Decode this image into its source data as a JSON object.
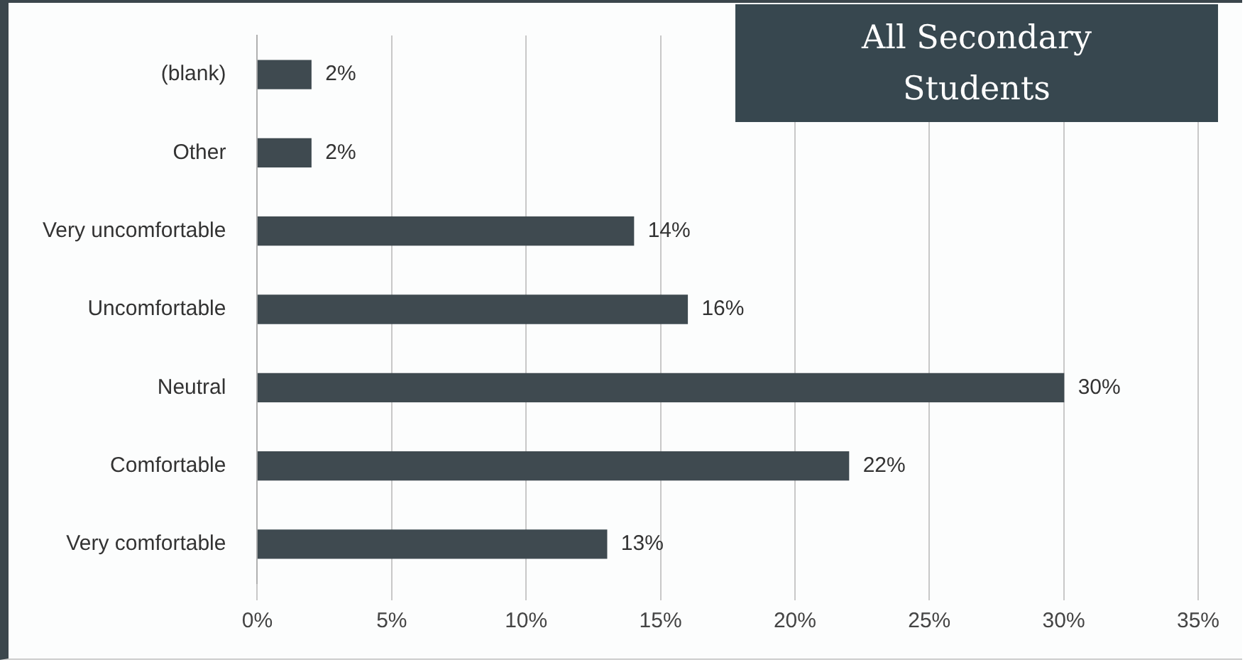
{
  "chart_data": {
    "type": "bar",
    "orientation": "horizontal",
    "title": "All Secondary Students",
    "categories": [
      "(blank)",
      "Other",
      "Very uncomfortable",
      "Uncomfortable",
      "Neutral",
      "Comfortable",
      "Very comfortable"
    ],
    "values": [
      2,
      2,
      14,
      16,
      30,
      22,
      13
    ],
    "value_labels": [
      "2%",
      "2%",
      "14%",
      "16%",
      "30%",
      "22%",
      "13%"
    ],
    "color": "#3f4a50",
    "xlim": [
      0,
      35
    ],
    "xticks": [
      {
        "value": 0,
        "label": "0%"
      },
      {
        "value": 5,
        "label": "5%"
      },
      {
        "value": 10,
        "label": "10%"
      },
      {
        "value": 15,
        "label": "15%"
      },
      {
        "value": 20,
        "label": "20%"
      },
      {
        "value": 25,
        "label": "25%"
      },
      {
        "value": 30,
        "label": "30%"
      },
      {
        "value": 35,
        "label": "35%"
      }
    ],
    "grid": "x",
    "legend": false
  }
}
